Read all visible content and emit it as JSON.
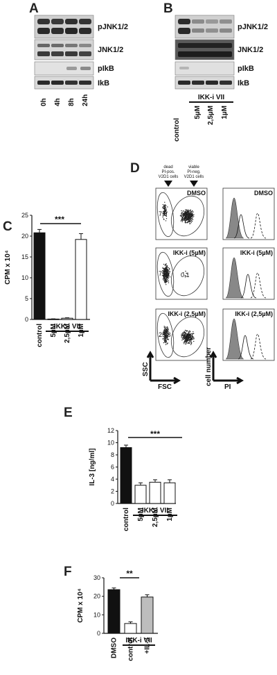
{
  "panels": {
    "A": {
      "label": "A",
      "rows": [
        "pJNK1/2",
        "JNK1/2",
        "pIkB",
        "IkB"
      ],
      "lanes": [
        "0h",
        "4h",
        "8h",
        "24h"
      ]
    },
    "B": {
      "label": "B",
      "rows": [
        "pJNK1/2",
        "JNK1/2",
        "pIkB",
        "IkB"
      ],
      "lanes": [
        "control",
        "5µM",
        "2,5µM",
        "1µM"
      ],
      "treatment": "IKK-i VII"
    },
    "C": {
      "label": "C",
      "significance": "***"
    },
    "D": {
      "label": "D",
      "header_dead": [
        "dead",
        "PI-pos.",
        "V2D1 cells"
      ],
      "header_viable": [
        "viable",
        "PI-neg.",
        "V2D1 cells"
      ],
      "scatter_tags": [
        "DMSO",
        "IKK-i (5µM)",
        "IKK-i (2,5µM)"
      ],
      "hist_tags": [
        "DMSO",
        "IKK-i (5µM)",
        "IKK-i (2,5µM)"
      ],
      "gate_values": [
        [
          "7,9",
          "82,6"
        ],
        [
          "77,7",
          "0,1"
        ],
        [
          "25,8",
          "59,9"
        ]
      ],
      "ssc": "SSC",
      "fsc": "FSC",
      "cell_number": "cell number",
      "pi": "PI"
    },
    "E": {
      "label": "E",
      "significance": "***"
    },
    "F": {
      "label": "F",
      "significance": "**"
    }
  },
  "chart_data": [
    {
      "panel": "C",
      "type": "bar",
      "categories": [
        "control",
        "5µM",
        "2,5µM",
        "1µM"
      ],
      "values": [
        20.8,
        0.1,
        0.3,
        19.2
      ],
      "errors": [
        0.8,
        0.05,
        0.1,
        1.4
      ],
      "fills": [
        "#111111",
        "#ffffff",
        "#ffffff",
        "#ffffff"
      ],
      "ylabel": "CPM x 10⁴",
      "ylim": [
        0,
        25
      ],
      "yticks": [
        "0",
        "5",
        "10",
        "15",
        "20",
        "25"
      ],
      "group_label": "IKK-i VII"
    },
    {
      "panel": "E",
      "type": "bar",
      "categories": [
        "control",
        "5µM",
        "2,5µM",
        "1µM"
      ],
      "values": [
        9.2,
        3.0,
        3.5,
        3.4
      ],
      "errors": [
        0.4,
        0.4,
        0.4,
        0.5
      ],
      "fills": [
        "#111111",
        "#ffffff",
        "#ffffff",
        "#ffffff"
      ],
      "ylabel": "IL-3 [ng/ml]",
      "ylim": [
        0,
        12
      ],
      "yticks": [
        "0",
        "2",
        "4",
        "6",
        "8",
        "10",
        "12"
      ],
      "group_label": "IKK-i VII"
    },
    {
      "panel": "F",
      "type": "bar",
      "categories": [
        "DMSO",
        "control",
        "+IL-3"
      ],
      "values": [
        23.6,
        5.3,
        19.6
      ],
      "errors": [
        0.9,
        0.9,
        1.2
      ],
      "fills": [
        "#111111",
        "#ffffff",
        "#bdbdbd"
      ],
      "ylabel": "CPM x 10⁴",
      "ylim": [
        0,
        30
      ],
      "yticks": [
        "0",
        "10",
        "20",
        "30"
      ],
      "group_label": "IKK-i VII"
    }
  ]
}
